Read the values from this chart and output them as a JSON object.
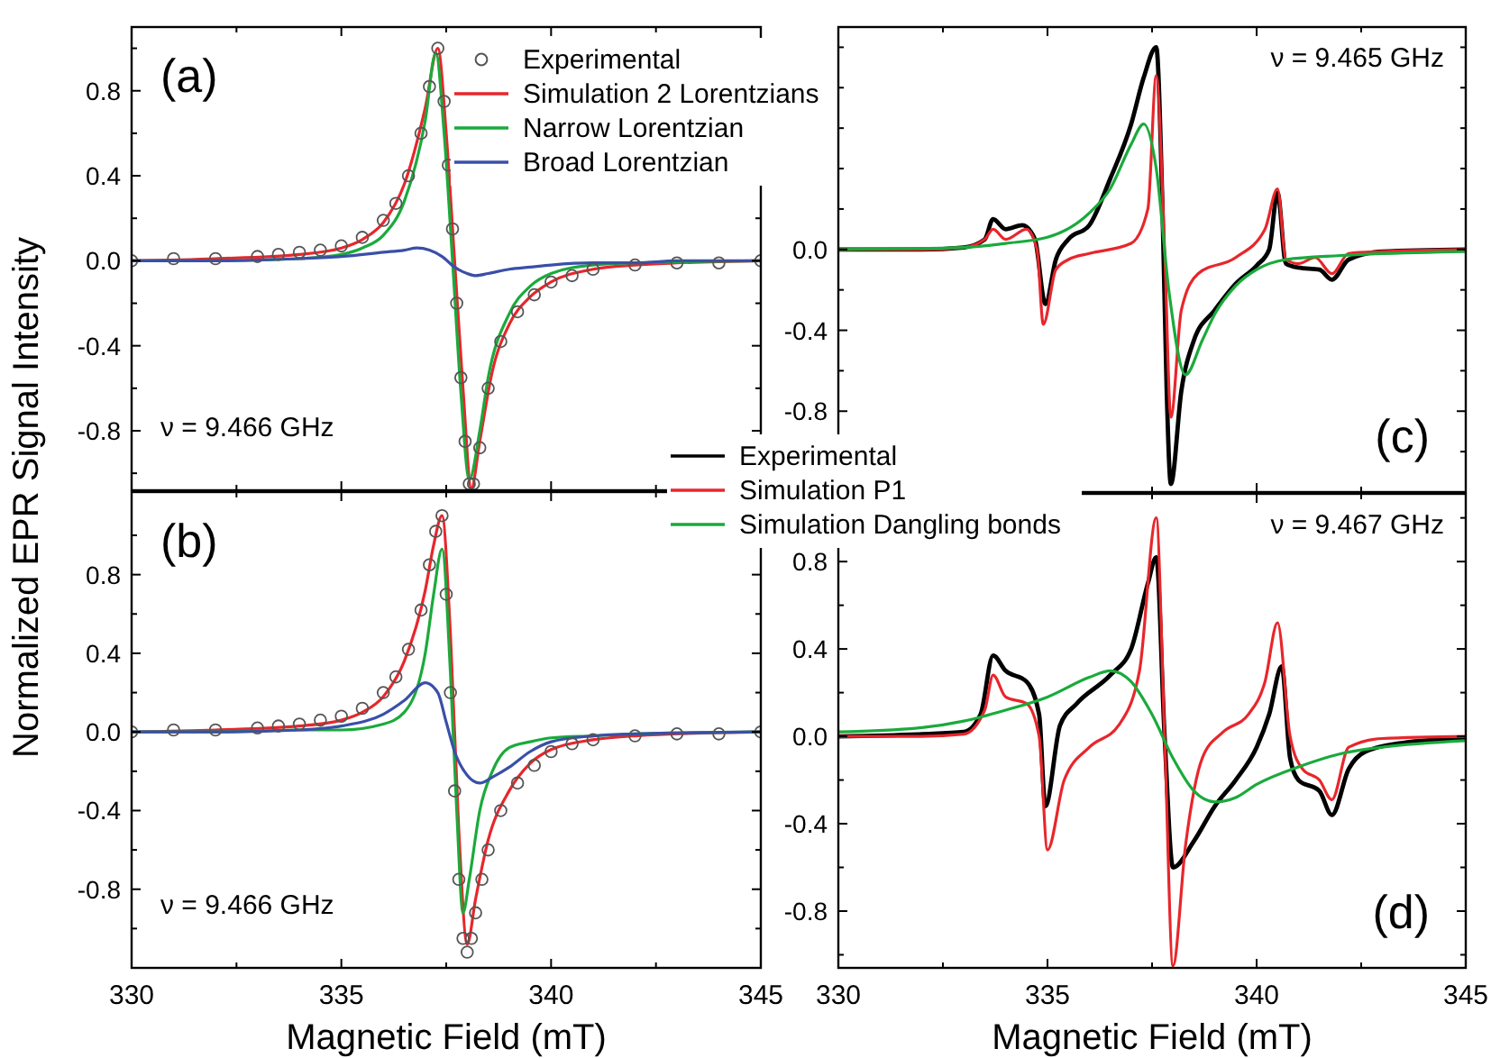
{
  "chart_data": [
    {
      "type": "line",
      "title": "(a)",
      "ylabel": "Normalized EPR Signal Intensity",
      "xlim": [
        330,
        345
      ],
      "ylim": [
        -1.08,
        1.1
      ],
      "tick_labels": "y",
      "legend": "top right",
      "annotations": [
        "ν = 9.466 GHz"
      ],
      "xticks": [
        330,
        {
          "value": 332.5,
          "label": null
        },
        335,
        {
          "value": 337.5,
          "label": null
        },
        340,
        {
          "value": 342.5,
          "label": null
        },
        345
      ],
      "yticks": [
        {
          "value": -1.0,
          "label": null
        },
        -0.8,
        {
          "value": -0.6,
          "label": null
        },
        -0.4,
        {
          "value": -0.2,
          "label": null
        },
        {
          "value": 0,
          "label": "0.0"
        },
        {
          "value": 0.2,
          "label": null
        },
        0.4,
        {
          "value": 0.6,
          "label": null
        },
        0.8,
        {
          "value": 1.0,
          "label": null
        }
      ],
      "series": [
        {
          "name": "Experimental",
          "type": "scatter",
          "marker": "circle",
          "color": "#555555",
          "x": [
            330,
            331,
            332,
            333,
            333.5,
            334,
            334.5,
            335,
            335.5,
            336,
            336.3,
            336.6,
            336.9,
            337.1,
            337.3,
            337.45,
            337.55,
            337.65,
            337.75,
            337.85,
            337.95,
            338.05,
            338.15,
            338.3,
            338.5,
            338.8,
            339.2,
            339.6,
            340,
            340.5,
            341,
            342,
            343,
            344,
            345
          ],
          "values": [
            0,
            0.01,
            0.01,
            0.02,
            0.03,
            0.04,
            0.05,
            0.07,
            0.11,
            0.19,
            0.27,
            0.4,
            0.6,
            0.82,
            1.0,
            0.75,
            0.45,
            0.15,
            -0.2,
            -0.55,
            -0.85,
            -1.05,
            -1.05,
            -0.88,
            -0.6,
            -0.38,
            -0.24,
            -0.16,
            -0.1,
            -0.07,
            -0.04,
            -0.02,
            -0.01,
            -0.01,
            0
          ]
        },
        {
          "name": "Simulation 2 Lorentzians",
          "color": "#e8262b",
          "x": [
            330,
            332,
            334,
            335,
            335.5,
            336,
            336.5,
            337,
            337.3,
            337.5,
            337.7,
            337.9,
            338.1,
            338.3,
            338.6,
            339,
            339.5,
            340,
            341,
            342,
            343,
            345
          ],
          "values": [
            0,
            0.01,
            0.03,
            0.06,
            0.1,
            0.18,
            0.36,
            0.72,
            1.0,
            0.6,
            0.0,
            -0.6,
            -1.07,
            -0.85,
            -0.52,
            -0.3,
            -0.17,
            -0.1,
            -0.04,
            -0.02,
            -0.01,
            0
          ]
        },
        {
          "name": "Narrow Lorentzian",
          "color": "#1aaa3c",
          "x": [
            330,
            332,
            334,
            335,
            335.5,
            336,
            336.5,
            337,
            337.25,
            337.45,
            337.65,
            337.85,
            338.05,
            338.3,
            338.5,
            339,
            339.5,
            340,
            341,
            342,
            345
          ],
          "values": [
            0,
            0.0,
            0.01,
            0.03,
            0.06,
            0.12,
            0.28,
            0.66,
            0.98,
            0.6,
            0.0,
            -0.62,
            -1.03,
            -0.8,
            -0.55,
            -0.25,
            -0.12,
            -0.06,
            -0.02,
            -0.01,
            0
          ]
        },
        {
          "name": "Broad Lorentzian",
          "color": "#3a4fa8",
          "x": [
            330,
            332,
            334,
            335,
            336,
            336.5,
            336.8,
            337.1,
            337.4,
            337.7,
            338,
            338.2,
            338.5,
            339,
            339.5,
            340,
            341,
            342,
            343,
            345
          ],
          "values": [
            0,
            0.0,
            0.01,
            0.02,
            0.04,
            0.05,
            0.06,
            0.05,
            0.02,
            -0.03,
            -0.06,
            -0.07,
            -0.06,
            -0.04,
            -0.03,
            -0.02,
            -0.01,
            -0.01,
            0,
            0
          ]
        }
      ]
    },
    {
      "type": "line",
      "title": "(b)",
      "xlabel": "Magnetic Field (mT)",
      "xlim": [
        330,
        345
      ],
      "ylim": [
        -1.2,
        1.22
      ],
      "annotations": [
        "ν = 9.466 GHz"
      ],
      "xticks": [
        330,
        {
          "value": 332.5,
          "label": null
        },
        335,
        {
          "value": 337.5,
          "label": null
        },
        340,
        {
          "value": 342.5,
          "label": null
        },
        345
      ],
      "yticks": [
        {
          "value": -1.0,
          "label": null
        },
        -0.8,
        {
          "value": -0.6,
          "label": null
        },
        -0.4,
        {
          "value": -0.2,
          "label": null
        },
        {
          "value": 0,
          "label": "0.0"
        },
        {
          "value": 0.2,
          "label": null
        },
        0.4,
        {
          "value": 0.6,
          "label": null
        },
        0.8,
        {
          "value": 1.0,
          "label": null
        }
      ],
      "series": [
        {
          "type": "scatter",
          "marker": "circle",
          "color": "#555555",
          "x": [
            330,
            331,
            332,
            333,
            333.5,
            334,
            334.5,
            335,
            335.5,
            336,
            336.3,
            336.6,
            336.9,
            337.1,
            337.25,
            337.4,
            337.5,
            337.6,
            337.7,
            337.8,
            337.9,
            338.0,
            338.1,
            338.2,
            338.35,
            338.5,
            338.8,
            339.2,
            339.6,
            340,
            340.5,
            341,
            342,
            343,
            344,
            345
          ],
          "values": [
            0,
            0.01,
            0.01,
            0.02,
            0.03,
            0.04,
            0.06,
            0.08,
            0.12,
            0.2,
            0.28,
            0.42,
            0.62,
            0.85,
            1.02,
            1.1,
            0.7,
            0.2,
            -0.3,
            -0.75,
            -1.05,
            -1.12,
            -1.05,
            -0.92,
            -0.75,
            -0.6,
            -0.4,
            -0.26,
            -0.17,
            -0.1,
            -0.06,
            -0.04,
            -0.02,
            -0.01,
            -0.01,
            0
          ]
        },
        {
          "color": "#e8262b",
          "x": [
            330,
            332,
            334,
            335,
            335.5,
            336,
            336.5,
            337,
            337.2,
            337.4,
            337.6,
            337.8,
            338.0,
            338.2,
            338.5,
            339,
            339.5,
            340,
            341,
            342,
            345
          ],
          "values": [
            0,
            0.01,
            0.03,
            0.06,
            0.1,
            0.18,
            0.36,
            0.72,
            0.95,
            1.1,
            0.5,
            -0.5,
            -1.08,
            -0.85,
            -0.55,
            -0.3,
            -0.16,
            -0.09,
            -0.04,
            -0.02,
            0
          ]
        },
        {
          "color": "#1aaa3c",
          "x": [
            330,
            332,
            334,
            335,
            336,
            336.5,
            337,
            337.2,
            337.4,
            337.6,
            337.75,
            337.9,
            338.05,
            338.3,
            338.6,
            339,
            339.5,
            340,
            341,
            342,
            345
          ],
          "values": [
            0,
            0.0,
            0.01,
            0.01,
            0.04,
            0.1,
            0.4,
            0.7,
            0.93,
            0.3,
            -0.4,
            -0.92,
            -0.75,
            -0.4,
            -0.2,
            -0.08,
            -0.05,
            -0.03,
            -0.02,
            -0.01,
            0
          ]
        },
        {
          "color": "#3a4fa8",
          "x": [
            330,
            332,
            334,
            335,
            336,
            336.5,
            337,
            337.3,
            337.5,
            337.7,
            338,
            338.3,
            338.6,
            339,
            339.5,
            340,
            341,
            342,
            345
          ],
          "values": [
            0,
            0.0,
            0.01,
            0.03,
            0.09,
            0.16,
            0.25,
            0.2,
            0.05,
            -0.1,
            -0.22,
            -0.26,
            -0.23,
            -0.18,
            -0.1,
            -0.05,
            -0.02,
            -0.01,
            0
          ]
        }
      ]
    },
    {
      "type": "line",
      "title": "(c)",
      "xlim": [
        330,
        345
      ],
      "ylim": [
        -1.2,
        1.1
      ],
      "tick_labels": "y",
      "legend": "bottom left",
      "annotations": [
        "ν = 9.465 GHz"
      ],
      "xticks": [
        330,
        {
          "value": 332.5,
          "label": null
        },
        335,
        {
          "value": 337.5,
          "label": null
        },
        340,
        {
          "value": 342.5,
          "label": null
        },
        345
      ],
      "yticks": [
        {
          "value": -1.0,
          "label": null
        },
        -0.8,
        {
          "value": -0.6,
          "label": null
        },
        -0.4,
        {
          "value": -0.2,
          "label": null
        },
        {
          "value": 0,
          "label": "0.0"
        },
        {
          "value": 0.2,
          "label": null
        },
        {
          "value": 0.4,
          "label": null
        },
        {
          "value": 0.6,
          "label": null
        },
        {
          "value": 0.8,
          "label": null
        },
        {
          "value": 1.0,
          "label": null
        }
      ],
      "series": [
        {
          "name": "Experimental",
          "color": "#000000",
          "x": [
            330,
            332,
            333,
            333.5,
            333.7,
            334,
            334.4,
            334.7,
            334.95,
            335.2,
            335.5,
            336,
            336.5,
            337,
            337.3,
            337.6,
            337.75,
            337.85,
            337.95,
            338.2,
            338.5,
            339,
            339.5,
            340,
            340.3,
            340.5,
            340.7,
            341,
            341.5,
            341.8,
            342.2,
            343,
            345
          ],
          "values": [
            0,
            0,
            0.01,
            0.05,
            0.15,
            0.1,
            0.12,
            0.05,
            -0.27,
            -0.05,
            0.05,
            0.12,
            0.35,
            0.62,
            0.85,
            1.0,
            0.2,
            -0.7,
            -1.16,
            -0.7,
            -0.45,
            -0.3,
            -0.17,
            -0.08,
            0.0,
            0.28,
            -0.07,
            -0.09,
            -0.1,
            -0.15,
            -0.05,
            -0.01,
            0
          ]
        },
        {
          "name": "Simulation P1",
          "color": "#e8262b",
          "x": [
            330,
            332,
            333,
            333.5,
            333.7,
            334,
            334.5,
            334.75,
            334.9,
            335.2,
            335.5,
            336,
            337,
            337.4,
            337.6,
            337.8,
            337.95,
            338.2,
            338.6,
            339.5,
            340.2,
            340.5,
            340.7,
            341,
            341.4,
            341.8,
            342.2,
            343,
            345
          ],
          "values": [
            0,
            0,
            0.01,
            0.05,
            0.1,
            0.05,
            0.1,
            0.0,
            -0.37,
            -0.1,
            -0.05,
            -0.02,
            0.03,
            0.2,
            0.86,
            0.0,
            -0.83,
            -0.3,
            -0.12,
            -0.04,
            0.1,
            0.3,
            -0.05,
            -0.07,
            -0.04,
            -0.12,
            -0.02,
            -0.01,
            0
          ]
        },
        {
          "name": "Simulation Dangling bonds",
          "color": "#1aaa3c",
          "x": [
            330,
            333,
            334,
            335,
            336,
            336.5,
            337,
            337.3,
            337.6,
            337.9,
            338.3,
            338.7,
            339,
            339.5,
            340,
            340.7,
            342,
            345
          ],
          "values": [
            0,
            0.01,
            0.03,
            0.06,
            0.18,
            0.3,
            0.52,
            0.62,
            0.4,
            -0.2,
            -0.62,
            -0.45,
            -0.32,
            -0.18,
            -0.1,
            -0.05,
            -0.03,
            -0.01
          ]
        }
      ]
    },
    {
      "type": "line",
      "title": "(d)",
      "xlabel": "Magnetic Field (mT)",
      "xlim": [
        330,
        345
      ],
      "ylim": [
        -1.06,
        1.11
      ],
      "annotations": [
        "ν = 9.467 GHz"
      ],
      "xticks": [
        330,
        {
          "value": 332.5,
          "label": null
        },
        335,
        {
          "value": 337.5,
          "label": null
        },
        340,
        {
          "value": 342.5,
          "label": null
        },
        345
      ],
      "yticks": [
        {
          "value": -1.0,
          "label": null
        },
        -0.8,
        {
          "value": -0.6,
          "label": null
        },
        -0.4,
        {
          "value": -0.2,
          "label": null
        },
        {
          "value": 0,
          "label": "0.0"
        },
        {
          "value": 0.2,
          "label": null
        },
        0.4,
        {
          "value": 0.6,
          "label": null
        },
        0.8,
        {
          "value": 1.0,
          "label": null
        }
      ],
      "series": [
        {
          "color": "#000000",
          "x": [
            330,
            332,
            333,
            333.4,
            333.7,
            334,
            334.5,
            334.8,
            334.95,
            335.3,
            335.7,
            336.5,
            337,
            337.4,
            337.6,
            337.8,
            338.0,
            338.5,
            339,
            339.5,
            340,
            340.3,
            340.6,
            340.8,
            341,
            341.5,
            341.8,
            342.2,
            342.6,
            343.5,
            345
          ],
          "values": [
            0,
            0.01,
            0.02,
            0.1,
            0.37,
            0.3,
            0.25,
            0.1,
            -0.32,
            0.05,
            0.15,
            0.28,
            0.4,
            0.7,
            0.82,
            0.0,
            -0.6,
            -0.48,
            -0.32,
            -0.2,
            -0.05,
            0.1,
            0.32,
            -0.1,
            -0.2,
            -0.25,
            -0.36,
            -0.15,
            -0.07,
            -0.03,
            -0.01
          ]
        },
        {
          "color": "#e8262b",
          "x": [
            330,
            332,
            333,
            333.5,
            333.7,
            334,
            334.5,
            334.8,
            335.0,
            335.4,
            336,
            336.7,
            337.2,
            337.6,
            337.8,
            338.0,
            338.3,
            338.7,
            339.2,
            339.8,
            340.2,
            340.5,
            340.8,
            341.1,
            341.5,
            341.8,
            342.2,
            343,
            345
          ],
          "values": [
            0,
            0,
            0.01,
            0.12,
            0.28,
            0.18,
            0.15,
            0.0,
            -0.52,
            -0.2,
            -0.05,
            0.05,
            0.3,
            1.0,
            0.0,
            -1.05,
            -0.5,
            -0.1,
            0.02,
            0.1,
            0.25,
            0.52,
            0.0,
            -0.15,
            -0.2,
            -0.29,
            -0.05,
            -0.01,
            0
          ]
        },
        {
          "color": "#1aaa3c",
          "x": [
            330,
            332,
            333,
            334,
            335,
            336,
            336.5,
            337,
            337.5,
            338,
            338.5,
            339,
            339.5,
            340,
            341,
            342,
            343,
            345
          ],
          "values": [
            0.02,
            0.04,
            0.07,
            0.12,
            0.18,
            0.27,
            0.3,
            0.25,
            0.1,
            -0.1,
            -0.25,
            -0.3,
            -0.28,
            -0.22,
            -0.14,
            -0.08,
            -0.05,
            -0.02
          ]
        }
      ]
    }
  ]
}
